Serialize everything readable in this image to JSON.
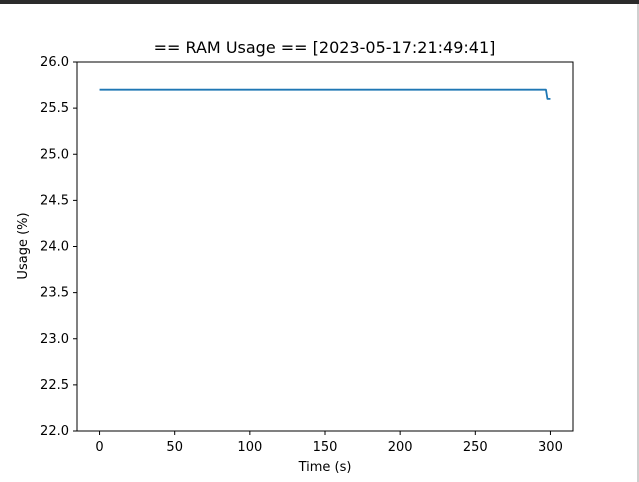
{
  "window": {
    "frame_color": "#2b2b2b",
    "border_color": "#cfcfcf"
  },
  "chart_data": {
    "type": "line",
    "title": "== RAM Usage == [2023-05-17:21:49:41]",
    "xlabel": "Time (s)",
    "ylabel": "Usage (%)",
    "xlim": [
      -15,
      315
    ],
    "ylim": [
      22.0,
      26.0
    ],
    "xticks": [
      0,
      50,
      100,
      150,
      200,
      250,
      300
    ],
    "xtick_labels": [
      "0",
      "50",
      "100",
      "150",
      "200",
      "250",
      "300"
    ],
    "yticks": [
      22.0,
      22.5,
      23.0,
      23.5,
      24.0,
      24.5,
      25.0,
      25.5,
      26.0
    ],
    "ytick_labels": [
      "22.0",
      "22.5",
      "23.0",
      "23.5",
      "24.0",
      "24.5",
      "25.0",
      "25.5",
      "26.0"
    ],
    "grid": false,
    "legend": "none",
    "series": [
      {
        "color": "#1f77b4",
        "x": [
          0,
          297,
          298,
          299,
          300
        ],
        "y": [
          25.7,
          25.7,
          25.6,
          25.6,
          25.6
        ]
      }
    ]
  }
}
